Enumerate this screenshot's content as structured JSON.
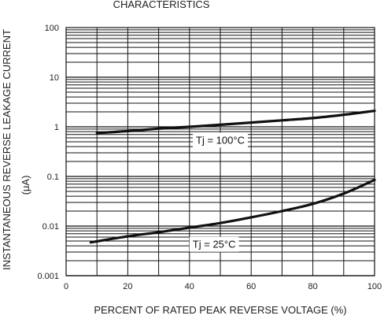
{
  "chart_data": {
    "type": "line",
    "title": "CHARACTERISTICS",
    "xlabel": "PERCENT OF RATED PEAK REVERSE VOLTAGE (%)",
    "ylabel": "INSTANTANEOUS REVERSE LEAKAGE CURRENT",
    "ylabel_unit": "(μA)",
    "xlim": [
      0,
      100
    ],
    "ylim": [
      0.001,
      100
    ],
    "y_scale": "log",
    "grid": true,
    "x_ticks": [
      "0",
      "20",
      "40",
      "60",
      "80",
      "100"
    ],
    "y_ticks": [
      "0.001",
      "0.01",
      "0.1",
      "1",
      "10",
      "100"
    ],
    "series": [
      {
        "name": "Tj = 100°C",
        "x": [
          10,
          20,
          30,
          40,
          50,
          60,
          70,
          80,
          90,
          100
        ],
        "y": [
          0.75,
          0.82,
          0.92,
          1.0,
          1.1,
          1.22,
          1.35,
          1.5,
          1.75,
          2.1
        ]
      },
      {
        "name": "Tj = 25°C",
        "x": [
          8,
          20,
          30,
          40,
          50,
          60,
          70,
          80,
          90,
          100
        ],
        "y": [
          0.0047,
          0.0062,
          0.0075,
          0.0093,
          0.0115,
          0.015,
          0.02,
          0.028,
          0.045,
          0.085
        ]
      }
    ],
    "annotations": [
      {
        "text": "Tj = 100°C",
        "x": 50,
        "y": 0.53
      },
      {
        "text": "Tj = 25°C",
        "x": 48,
        "y": 0.0042
      }
    ]
  }
}
